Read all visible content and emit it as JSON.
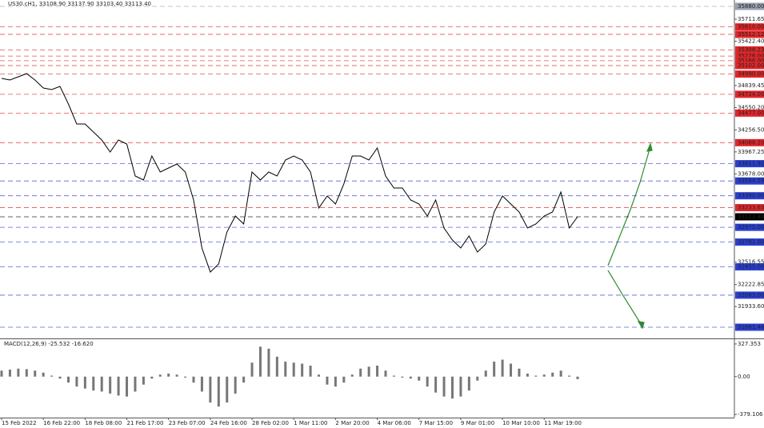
{
  "chart_data": [
    {
      "type": "line",
      "title": "US30.cH1,  33108.90 33137.90 33103.40 33113.40",
      "categories": [
        "15 Feb 2022",
        null,
        null,
        null,
        null,
        "16 Feb 22:00",
        null,
        null,
        null,
        null,
        "18 Feb 08:00",
        null,
        null,
        null,
        null,
        "21 Feb 17:00",
        null,
        null,
        null,
        null,
        "23 Feb 07:00",
        null,
        null,
        null,
        null,
        "24 Feb 16:00",
        null,
        null,
        null,
        null,
        "28 Feb 02:00",
        null,
        null,
        null,
        null,
        "1 Mar 11:00",
        null,
        null,
        null,
        null,
        "2 Mar 20:00",
        null,
        null,
        null,
        null,
        "4 Mar 06:00",
        null,
        null,
        null,
        null,
        "7 Mar 15:00",
        null,
        null,
        null,
        null,
        "9 Mar 01:00",
        null,
        null,
        null,
        null,
        "10 Mar 10:00",
        null,
        null,
        null,
        null,
        "11 Mar 19:00",
        null,
        null,
        null,
        null
      ],
      "series": [
        {
          "color": "#000000",
          "values": [
            34933,
            34912,
            34954,
            34996,
            34912,
            34807,
            34786,
            34828,
            34597,
            34334,
            34334,
            34228,
            34123,
            33965,
            34123,
            34071,
            33650,
            33597,
            33913,
            33702,
            33755,
            33808,
            33702,
            33334,
            32703,
            32387,
            32493,
            32913,
            33124,
            33019,
            33702,
            33597,
            33702,
            33650,
            33860,
            33913,
            33860,
            33702,
            33229,
            33387,
            33282,
            33545,
            33913,
            33913,
            33860,
            34018,
            33650,
            33492,
            33492,
            33334,
            33282,
            33124,
            33334,
            32966,
            32808,
            32703,
            32861,
            32650,
            32756,
            33176,
            33387,
            33282,
            33176,
            32966,
            33019,
            33124,
            33176,
            33439,
            32966,
            33113.4
          ]
        }
      ],
      "ylim": [
        31525,
        35964
      ],
      "yticks": [
        35711.65,
        {
          "value": 35422.4,
          "label": "35422.40"
        },
        34839.45,
        {
          "value": 34550.2,
          "label": "34550.20"
        },
        {
          "value": 34256.5,
          "label": "34256.50"
        },
        33967.25,
        {
          "value": 33678,
          "label": "33678.00"
        },
        32516.55,
        32222.85,
        {
          "value": 31933.6,
          "label": "31933.60"
        }
      ],
      "levels": [
        {
          "value": 35880,
          "label": "35880.00",
          "color": "#9aa0b0"
        },
        {
          "value": 35610,
          "label": "35610.00",
          "color": "#e0262a"
        },
        {
          "value": 35512.12,
          "label": "35512.12",
          "color": "#e0262a"
        },
        {
          "value": 35308.23,
          "label": "35308.23",
          "color": "#e0262a"
        },
        {
          "value": 35226,
          "label": "35226.00",
          "color": "#e0262a"
        },
        {
          "value": 35166,
          "label": "35166.00",
          "color": "#e0262a"
        },
        {
          "value": 35102,
          "label": "35102.00",
          "color": "#e0262a"
        },
        {
          "value": 34990,
          "label": "34990.00",
          "color": "#e0262a"
        },
        {
          "value": 34724,
          "label": "34724.00",
          "color": "#e0262a"
        },
        {
          "value": 34477,
          "label": "34477.00",
          "color": "#e0262a"
        },
        {
          "value": 34088.2,
          "label": "34088.20",
          "color": "#e0262a"
        },
        {
          "value": 33811.92,
          "label": "33811.92",
          "color": "#2a3fd0"
        },
        {
          "value": 33584.59,
          "label": "33584.59",
          "color": "#2a3fd0"
        },
        {
          "value": 33390,
          "label": "33390.00",
          "color": "#2a3fd0"
        },
        {
          "value": 33233.63,
          "label": "33233.63",
          "color": "#e0262a"
        },
        {
          "value": 33113.4,
          "label": "33113.40",
          "color": "#000000"
        },
        {
          "value": 32975,
          "label": "32975.00",
          "color": "#2a3fd0"
        },
        {
          "value": 32781,
          "label": "32781.00",
          "color": "#2a3fd0"
        },
        {
          "value": 32455,
          "label": "32455.00",
          "color": "#2a3fd0"
        },
        {
          "value": 32083,
          "label": "32083.00",
          "color": "#2a3fd0"
        },
        {
          "value": 31661.46,
          "label": "31661.46",
          "color": "#2a3fd0"
        }
      ]
    },
    {
      "type": "bar",
      "title": "MACD(12,26,9) -25.532 -16.620",
      "color": "#777777",
      "values": [
        60,
        70,
        80,
        75,
        60,
        40,
        10,
        -20,
        -60,
        -100,
        -120,
        -140,
        -150,
        -170,
        -190,
        -200,
        -150,
        -80,
        -20,
        20,
        30,
        20,
        -10,
        -60,
        -150,
        -260,
        -300,
        -260,
        -170,
        -60,
        140,
        300,
        280,
        200,
        150,
        140,
        130,
        110,
        20,
        -80,
        -100,
        -60,
        20,
        80,
        100,
        110,
        60,
        10,
        -10,
        -20,
        -40,
        -100,
        -160,
        -200,
        -220,
        -200,
        -140,
        -40,
        60,
        150,
        170,
        130,
        80,
        30,
        10,
        20,
        40,
        60,
        10,
        -25.532
      ],
      "ylim": [
        -411,
        375
      ],
      "yticks": [
        327.353,
        {
          "value": 0,
          "label": "0.00"
        },
        -379.106
      ]
    }
  ]
}
